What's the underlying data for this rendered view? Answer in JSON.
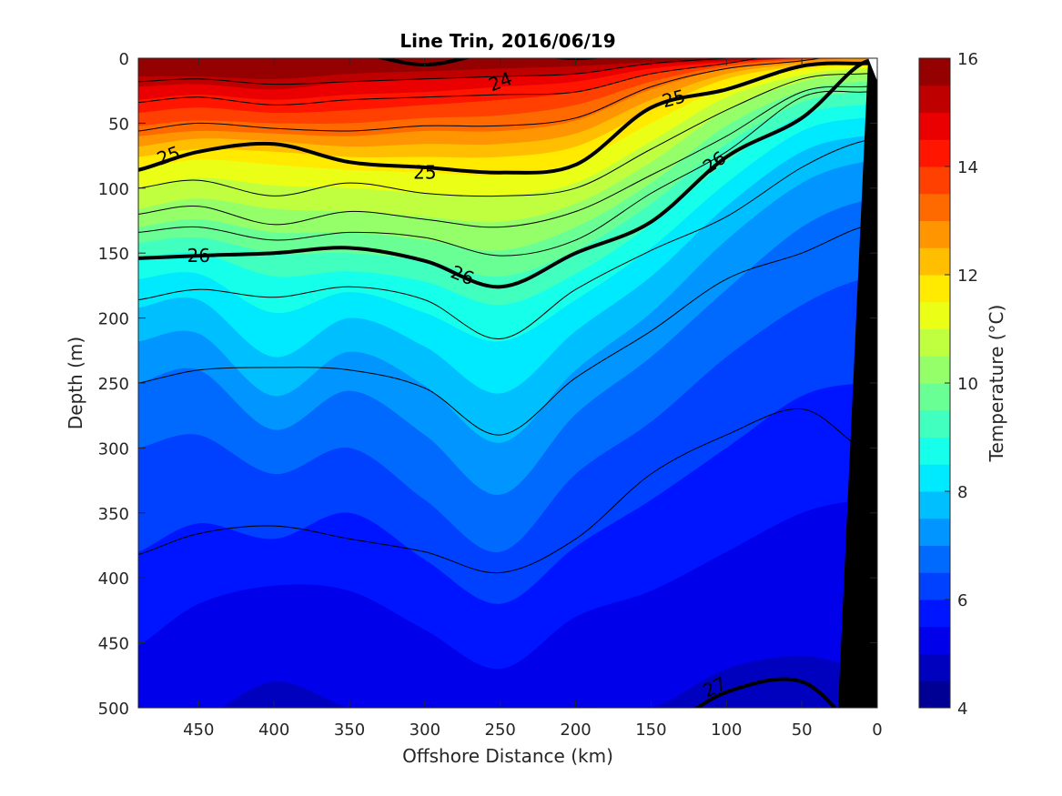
{
  "chart_data": {
    "type": "contourf",
    "title": "Line Trin, 2016/06/19",
    "xlabel": "Offshore Distance (km)",
    "ylabel": "Depth (m)",
    "xlim": [
      490,
      0
    ],
    "ylim": [
      0,
      500
    ],
    "x_reversed": true,
    "y_reversed": true,
    "xticks": [
      "450",
      "400",
      "350",
      "300",
      "250",
      "200",
      "150",
      "100",
      "50",
      "0"
    ],
    "yticks": [
      "0",
      "50",
      "100",
      "150",
      "200",
      "250",
      "300",
      "350",
      "400",
      "450",
      "500"
    ],
    "colorbar": {
      "label": "Temperature (°C)",
      "min": 4,
      "max": 16,
      "step": 0.5,
      "ticks": [
        "4",
        "6",
        "8",
        "10",
        "12",
        "14",
        "16"
      ],
      "colormap": "jet"
    },
    "temperature_isotherm_depths_m": {
      "x_km": [
        490,
        450,
        400,
        350,
        300,
        250,
        200,
        150,
        100,
        50,
        10
      ],
      "levels": [
        {
          "temp": 15.5,
          "depth": [
            14,
            14,
            16,
            12,
            10,
            8,
            6,
            3,
            1,
            0,
            0
          ]
        },
        {
          "temp": 15,
          "depth": [
            22,
            20,
            24,
            18,
            16,
            14,
            12,
            5,
            2,
            0,
            0
          ]
        },
        {
          "temp": 14.5,
          "depth": [
            32,
            28,
            32,
            28,
            26,
            22,
            18,
            8,
            3,
            0,
            0
          ]
        },
        {
          "temp": 14,
          "depth": [
            42,
            38,
            42,
            40,
            36,
            32,
            26,
            12,
            4,
            0,
            0
          ]
        },
        {
          "temp": 13.5,
          "depth": [
            52,
            48,
            50,
            50,
            46,
            44,
            36,
            18,
            6,
            1,
            0
          ]
        },
        {
          "temp": 13,
          "depth": [
            60,
            56,
            58,
            60,
            56,
            56,
            48,
            24,
            8,
            2,
            0
          ]
        },
        {
          "temp": 12.5,
          "depth": [
            68,
            62,
            64,
            68,
            66,
            66,
            58,
            32,
            12,
            4,
            2
          ]
        },
        {
          "temp": 12,
          "depth": [
            76,
            70,
            72,
            76,
            76,
            76,
            68,
            40,
            16,
            6,
            4
          ]
        },
        {
          "temp": 11.5,
          "depth": [
            86,
            78,
            82,
            86,
            88,
            90,
            80,
            50,
            22,
            9,
            6
          ]
        },
        {
          "temp": 11,
          "depth": [
            100,
            92,
            98,
            100,
            104,
            106,
            96,
            64,
            30,
            13,
            8
          ]
        },
        {
          "temp": 10.5,
          "depth": [
            116,
            108,
            116,
            118,
            122,
            126,
            112,
            80,
            40,
            18,
            12
          ]
        },
        {
          "temp": 10,
          "depth": [
            130,
            124,
            134,
            134,
            140,
            148,
            130,
            96,
            52,
            25,
            18
          ]
        },
        {
          "temp": 9.5,
          "depth": [
            142,
            138,
            150,
            150,
            156,
            168,
            148,
            112,
            66,
            34,
            26
          ]
        },
        {
          "temp": 9,
          "depth": [
            154,
            150,
            168,
            164,
            172,
            190,
            166,
            128,
            80,
            44,
            36
          ]
        },
        {
          "temp": 8.5,
          "depth": [
            170,
            166,
            196,
            180,
            196,
            218,
            186,
            146,
            96,
            56,
            46
          ]
        },
        {
          "temp": 8,
          "depth": [
            192,
            186,
            230,
            200,
            222,
            258,
            210,
            168,
            114,
            72,
            60
          ]
        },
        {
          "temp": 7.5,
          "depth": [
            218,
            212,
            260,
            226,
            252,
            296,
            240,
            196,
            140,
            96,
            80
          ]
        },
        {
          "temp": 7,
          "depth": [
            250,
            240,
            286,
            256,
            290,
            336,
            274,
            230,
            178,
            130,
            110
          ]
        },
        {
          "temp": 6.5,
          "depth": [
            300,
            290,
            320,
            300,
            340,
            380,
            320,
            280,
            230,
            190,
            170
          ]
        },
        {
          "temp": 6,
          "depth": [
            380,
            358,
            370,
            350,
            386,
            420,
            376,
            340,
            300,
            260,
            250
          ]
        },
        {
          "temp": 5.5,
          "depth": [
            452,
            420,
            406,
            410,
            440,
            470,
            430,
            410,
            380,
            350,
            340
          ]
        },
        {
          "temp": 5,
          "depth": [
            520,
            510,
            480,
            500,
            510,
            520,
            500,
            500,
            470,
            460,
            470
          ]
        }
      ]
    },
    "density_contours": {
      "x_km": [
        490,
        450,
        400,
        350,
        300,
        250,
        200,
        150,
        100,
        50,
        10
      ],
      "levels": [
        {
          "sigma": 24,
          "labeled": true,
          "depth": [
            -5,
            -5,
            -5,
            -5,
            5,
            -5,
            0,
            -5,
            -5,
            -5,
            -5
          ]
        },
        {
          "sigma": 24.25,
          "labeled": false,
          "depth": [
            18,
            16,
            20,
            18,
            16,
            14,
            12,
            4,
            0,
            -5,
            -5
          ]
        },
        {
          "sigma": 24.5,
          "labeled": false,
          "depth": [
            34,
            30,
            36,
            32,
            30,
            28,
            26,
            12,
            4,
            -5,
            -5
          ]
        },
        {
          "sigma": 24.75,
          "labeled": false,
          "depth": [
            56,
            50,
            54,
            56,
            52,
            52,
            46,
            22,
            8,
            2,
            -5
          ]
        },
        {
          "sigma": 25,
          "labeled": true,
          "depth": [
            86,
            72,
            66,
            80,
            84,
            88,
            82,
            38,
            24,
            6,
            4
          ]
        },
        {
          "sigma": 25.25,
          "labeled": false,
          "depth": [
            100,
            94,
            106,
            96,
            104,
            106,
            100,
            70,
            40,
            16,
            12
          ]
        },
        {
          "sigma": 25.5,
          "labeled": false,
          "depth": [
            120,
            114,
            128,
            118,
            124,
            130,
            118,
            90,
            60,
            26,
            22
          ]
        },
        {
          "sigma": 25.75,
          "labeled": false,
          "depth": [
            134,
            130,
            140,
            134,
            138,
            152,
            140,
            104,
            72,
            30,
            26
          ]
        },
        {
          "sigma": 26,
          "labeled": true,
          "depth": [
            154,
            152,
            150,
            146,
            156,
            176,
            150,
            126,
            76,
            46,
            4
          ]
        },
        {
          "sigma": 26.25,
          "labeled": false,
          "depth": [
            186,
            178,
            184,
            176,
            186,
            216,
            178,
            148,
            122,
            84,
            64
          ]
        },
        {
          "sigma": 26.5,
          "labeled": false,
          "depth": [
            250,
            240,
            238,
            240,
            254,
            290,
            246,
            210,
            170,
            150,
            130
          ]
        },
        {
          "sigma": 26.75,
          "labeled": false,
          "depth": [
            382,
            366,
            360,
            370,
            380,
            396,
            370,
            320,
            290,
            270,
            300
          ]
        },
        {
          "sigma": 27,
          "labeled": true,
          "depth": [
            520,
            520,
            520,
            520,
            520,
            520,
            520,
            520,
            488,
            480,
            520
          ]
        }
      ]
    },
    "contour_labels": [
      {
        "text": "24",
        "x": 250,
        "y": 18,
        "angle": -20
      },
      {
        "text": "25",
        "x": 470,
        "y": 75,
        "angle": -20
      },
      {
        "text": "25",
        "x": 300,
        "y": 88,
        "angle": 0
      },
      {
        "text": "25",
        "x": 135,
        "y": 31,
        "angle": -15
      },
      {
        "text": "26",
        "x": 450,
        "y": 152,
        "angle": 0
      },
      {
        "text": "26",
        "x": 275,
        "y": 167,
        "angle": 22
      },
      {
        "text": "26",
        "x": 108,
        "y": 80,
        "angle": -35
      },
      {
        "text": "27",
        "x": 108,
        "y": 484,
        "angle": -25
      }
    ],
    "bathymetry": {
      "color": "#000000",
      "surface_edge_x": 6,
      "bottom_edge_x": 26
    }
  }
}
